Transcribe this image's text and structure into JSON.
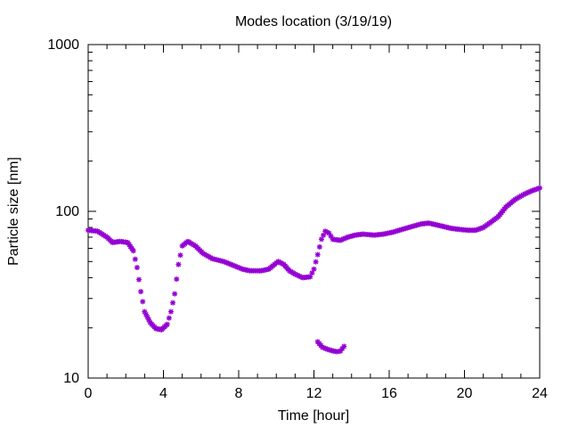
{
  "chart_data": {
    "type": "scatter",
    "title": "Modes location (3/19/19)",
    "xlabel": "Time [hour]",
    "ylabel": "Particle size [nm]",
    "xlim": [
      0,
      24
    ],
    "ylim": [
      10,
      1000
    ],
    "yscale": "log",
    "x_ticks": [
      0,
      4,
      8,
      12,
      16,
      20,
      24
    ],
    "x_tick_labels": [
      "0",
      "4",
      "8",
      "12",
      "16",
      "20",
      "24"
    ],
    "y_ticks": [
      10,
      100,
      1000
    ],
    "y_tick_labels": [
      "10",
      "100",
      "1000"
    ],
    "grid": false,
    "legend": "none",
    "marker": "asterisk",
    "color": "#9400d3",
    "series": [
      {
        "points": [
          [
            0.0,
            77
          ],
          [
            0.5,
            76
          ],
          [
            1.0,
            70
          ],
          [
            1.3,
            65
          ],
          [
            1.7,
            66
          ],
          [
            2.1,
            65
          ],
          [
            2.4,
            58
          ],
          [
            2.6,
            46
          ],
          [
            2.8,
            33
          ],
          [
            3.0,
            25
          ],
          [
            3.3,
            21.5
          ],
          [
            3.6,
            19.8
          ],
          [
            3.9,
            19.5
          ],
          [
            4.2,
            21
          ],
          [
            4.4,
            25
          ],
          [
            4.6,
            32
          ],
          [
            4.8,
            48
          ],
          [
            5.0,
            62
          ],
          [
            5.3,
            66
          ],
          [
            5.7,
            62
          ],
          [
            6.1,
            56
          ],
          [
            6.6,
            52
          ],
          [
            7.2,
            50
          ],
          [
            7.6,
            48
          ],
          [
            8.2,
            45
          ],
          [
            8.6,
            44
          ],
          [
            9.2,
            44
          ],
          [
            9.6,
            45
          ],
          [
            9.9,
            48
          ],
          [
            10.1,
            50
          ],
          [
            10.4,
            48
          ],
          [
            10.7,
            44
          ],
          [
            11.0,
            42
          ],
          [
            11.4,
            40
          ],
          [
            11.8,
            40.5
          ],
          [
            12.0,
            45
          ],
          [
            12.2,
            55
          ],
          [
            12.4,
            68
          ],
          [
            12.6,
            76
          ],
          [
            12.8,
            74
          ],
          [
            13.0,
            68
          ],
          [
            13.4,
            67
          ],
          [
            13.8,
            70
          ],
          [
            14.2,
            72
          ],
          [
            14.6,
            73
          ],
          [
            15.2,
            72
          ],
          [
            15.7,
            73
          ],
          [
            16.2,
            75
          ],
          [
            16.7,
            78
          ],
          [
            17.2,
            81
          ],
          [
            17.7,
            84
          ],
          [
            18.1,
            85
          ],
          [
            18.5,
            83
          ],
          [
            18.9,
            81
          ],
          [
            19.3,
            79
          ],
          [
            19.7,
            78
          ],
          [
            20.2,
            77
          ],
          [
            20.6,
            77
          ],
          [
            21.0,
            80
          ],
          [
            21.4,
            86
          ],
          [
            21.8,
            93
          ],
          [
            22.2,
            106
          ],
          [
            22.7,
            118
          ],
          [
            23.2,
            127
          ],
          [
            23.6,
            133
          ],
          [
            24.0,
            138
          ]
        ]
      },
      {
        "points": [
          [
            12.2,
            16.5
          ],
          [
            12.45,
            15.3
          ],
          [
            12.7,
            14.9
          ],
          [
            12.95,
            14.6
          ],
          [
            13.2,
            14.4
          ],
          [
            13.4,
            14.5
          ],
          [
            13.6,
            15.5
          ]
        ]
      }
    ]
  }
}
